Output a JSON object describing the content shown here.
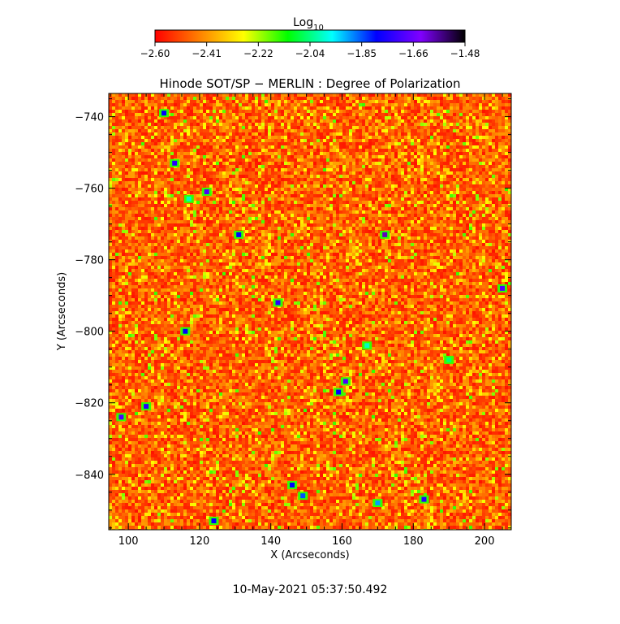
{
  "chart_data": {
    "type": "heatmap",
    "title": "Hinode SOT/SP − MERLIN : Degree of Polarization",
    "xlabel": "X (Arcseconds)",
    "ylabel": "Y (Arcseconds)",
    "xlim": [
      94.5,
      207.5
    ],
    "ylim": [
      -855.5,
      -733.5
    ],
    "xticks": [
      "100",
      "120",
      "140",
      "160",
      "180",
      "200"
    ],
    "xtick_values": [
      100,
      120,
      140,
      160,
      180,
      200
    ],
    "yticks": [
      "−740",
      "−760",
      "−780",
      "−800",
      "−820",
      "−840"
    ],
    "ytick_values": [
      -740,
      -760,
      -780,
      -800,
      -820,
      -840
    ],
    "colorbar": {
      "label_main": "Log",
      "label_sub": "10",
      "range": [
        -2.6,
        -1.48
      ],
      "ticks": [
        "−2.60",
        "−2.41",
        "−2.22",
        "−2.04",
        "−1.85",
        "−1.66",
        "−1.48"
      ],
      "colors": [
        "#ff0000",
        "#ff8000",
        "#ffff00",
        "#00ff00",
        "#00ffff",
        "#0000ff",
        "#8000ff",
        "#000000"
      ]
    },
    "features": [
      {
        "x": 113,
        "y": -753,
        "value": -1.75
      },
      {
        "x": 110,
        "y": -739,
        "value": -1.8
      },
      {
        "x": 117,
        "y": -763,
        "value": -2.0
      },
      {
        "x": 122,
        "y": -761,
        "value": -1.7
      },
      {
        "x": 131,
        "y": -773,
        "value": -1.8
      },
      {
        "x": 142,
        "y": -792,
        "value": -1.75
      },
      {
        "x": 172,
        "y": -773,
        "value": -1.6
      },
      {
        "x": 205,
        "y": -788,
        "value": -1.7
      },
      {
        "x": 116,
        "y": -800,
        "value": -1.8
      },
      {
        "x": 105,
        "y": -821,
        "value": -1.75
      },
      {
        "x": 98,
        "y": -824,
        "value": -1.7
      },
      {
        "x": 161,
        "y": -814,
        "value": -1.7
      },
      {
        "x": 159,
        "y": -817,
        "value": -1.8
      },
      {
        "x": 146,
        "y": -843,
        "value": -1.8
      },
      {
        "x": 149,
        "y": -846,
        "value": -1.85
      },
      {
        "x": 170,
        "y": -848,
        "value": -1.9
      },
      {
        "x": 183,
        "y": -847,
        "value": -1.75
      },
      {
        "x": 124,
        "y": -853,
        "value": -1.8
      },
      {
        "x": 167,
        "y": -804,
        "value": -2.0
      },
      {
        "x": 190,
        "y": -808,
        "value": -2.05
      }
    ]
  },
  "timestamp": "10-May-2021 05:37:50.492"
}
